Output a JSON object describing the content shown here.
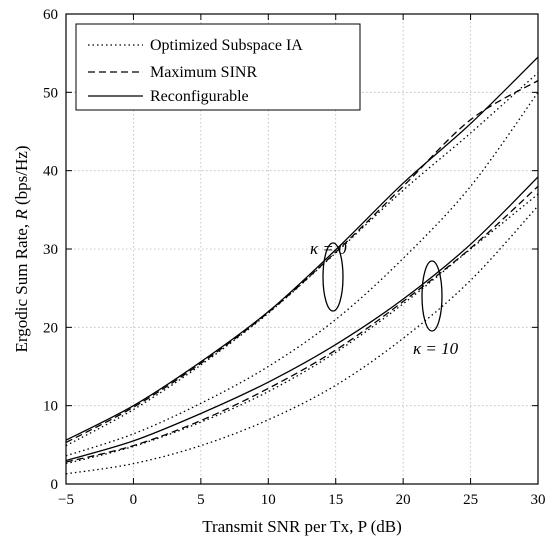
{
  "chart_data": {
    "type": "line",
    "xlabel": "Transmit SNR per Tx, P (dB)",
    "ylabel_prefix": "Ergodic Sum Rate, ",
    "ylabel_symbol": "R",
    "ylabel_suffix": " (bps/Hz)",
    "xlim": [
      -5,
      30
    ],
    "ylim": [
      0,
      60
    ],
    "xticks": [
      -5,
      0,
      5,
      10,
      15,
      20,
      25,
      30
    ],
    "yticks": [
      0,
      10,
      20,
      30,
      40,
      50,
      60
    ],
    "x_tick_labels": [
      "−5",
      "0",
      "5",
      "10",
      "15",
      "20",
      "25",
      "30"
    ],
    "y_tick_labels": [
      "0",
      "10",
      "20",
      "30",
      "40",
      "50",
      "60"
    ],
    "grid": true,
    "legend_position": "top-left",
    "legend": [
      {
        "label": "Optimized Subspace IA",
        "style": "dotted"
      },
      {
        "label": "Maximum SINR",
        "style": "dashed"
      },
      {
        "label": "Reconfigurable",
        "style": "solid"
      }
    ],
    "annotations": {
      "kappa0": "κ = 0",
      "kappa10": "κ = 10"
    },
    "series": [
      {
        "legend_index": 0,
        "group": "kappa0",
        "style": "dotted",
        "x": [
          -5,
          0,
          5,
          10,
          15,
          20,
          25,
          30
        ],
        "y": [
          3.6,
          6.4,
          10.3,
          15.0,
          21.0,
          28.8,
          38.0,
          50.0
        ]
      },
      {
        "legend_index": 0,
        "group": "kappa0",
        "style": "dotted",
        "x": [
          -5,
          0,
          5,
          10,
          15,
          20,
          25,
          30
        ],
        "y": [
          4.9,
          9.5,
          15.2,
          21.8,
          29.5,
          37.5,
          44.8,
          52.5
        ]
      },
      {
        "legend_index": 1,
        "group": "kappa0",
        "style": "dashed",
        "x": [
          -5,
          0,
          5,
          10,
          15,
          20,
          25,
          30
        ],
        "y": [
          5.3,
          9.8,
          15.4,
          21.9,
          29.6,
          38.0,
          46.5,
          51.5
        ]
      },
      {
        "legend_index": 2,
        "group": "kappa0",
        "style": "solid",
        "x": [
          -5,
          0,
          5,
          10,
          15,
          20,
          25,
          30
        ],
        "y": [
          5.6,
          10.0,
          15.6,
          22.0,
          29.9,
          38.4,
          46.0,
          54.5
        ]
      },
      {
        "legend_index": 0,
        "group": "kappa10",
        "style": "dotted",
        "x": [
          -5,
          0,
          5,
          10,
          15,
          20,
          25,
          30
        ],
        "y": [
          1.3,
          2.6,
          4.9,
          8.2,
          12.6,
          18.6,
          26.0,
          35.5
        ]
      },
      {
        "legend_index": 0,
        "group": "kappa10",
        "style": "dotted",
        "x": [
          -5,
          0,
          5,
          10,
          15,
          20,
          25,
          30
        ],
        "y": [
          2.6,
          4.8,
          7.9,
          11.8,
          16.8,
          23.0,
          30.0,
          37.0
        ]
      },
      {
        "legend_index": 1,
        "group": "kappa10",
        "style": "dashed",
        "x": [
          -5,
          0,
          5,
          10,
          15,
          20,
          25,
          30
        ],
        "y": [
          2.8,
          4.9,
          8.1,
          12.2,
          17.1,
          23.3,
          30.1,
          38.0
        ]
      },
      {
        "legend_index": 2,
        "group": "kappa10",
        "style": "solid",
        "x": [
          -5,
          0,
          5,
          10,
          15,
          20,
          25,
          30
        ],
        "y": [
          3.0,
          5.5,
          9.0,
          13.0,
          17.8,
          23.6,
          30.6,
          39.2
        ]
      }
    ]
  }
}
